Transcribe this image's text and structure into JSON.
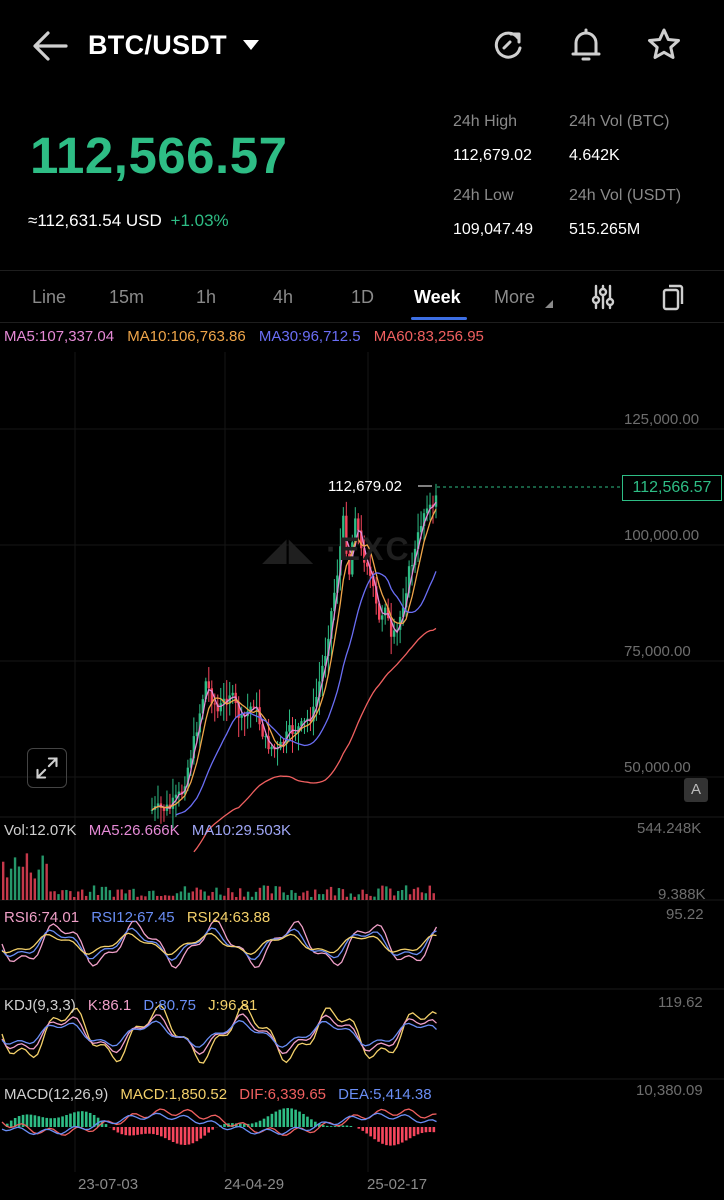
{
  "header": {
    "pair": "BTC/USDT",
    "icons": [
      "back-arrow-icon",
      "refresh-icon",
      "bell-icon",
      "star-icon"
    ]
  },
  "ticker": {
    "last_price": "112,566.57",
    "usd_value": "≈112,631.54 USD",
    "change": "+1.03%",
    "high_label": "24h High",
    "high_value": "112,679.02",
    "low_label": "24h Low",
    "low_value": "109,047.49",
    "vol_btc_label": "24h Vol (BTC)",
    "vol_btc_value": "4.642K",
    "vol_usdt_label": "24h Vol  (USDT)",
    "vol_usdt_value": "515.265M"
  },
  "tabs": {
    "items": [
      "Line",
      "15m",
      "1h",
      "4h",
      "1D",
      "Week",
      "More"
    ],
    "active": "Week"
  },
  "chart": {
    "ma": {
      "ma5": "MA5:107,337.04",
      "ma10": "MA10:106,763.86",
      "ma30": "MA30:96,712.5",
      "ma60": "MA60:83,256.95"
    },
    "price_axis": [
      "125,000.00",
      "100,000.00",
      "75,000.00",
      "50,000.00"
    ],
    "current_price_tag": "112,566.57",
    "high_marker": "112,679.02",
    "a_button": "A",
    "volume": {
      "label": "Vol:12.07K",
      "ma5": "MA5:26.666K",
      "ma10": "MA10:29.503K",
      "max": "544.248K",
      "min": "9.388K"
    },
    "rsi": {
      "rsi6": "RSI6:74.01",
      "rsi12": "RSI12:67.45",
      "rsi24": "RSI24:63.88",
      "max": "95.22"
    },
    "kdj": {
      "label": "KDJ(9,3,3)",
      "k": "K:86.1",
      "d": "D:80.75",
      "j": "J:96.81",
      "max": "119.62"
    },
    "macd": {
      "label": "MACD(12,26,9)",
      "macd": "MACD:1,850.52",
      "dif": "DIF:6,339.65",
      "dea": "DEA:5,414.38",
      "max": "10,380.09"
    },
    "x_labels": [
      "23-07-03",
      "24-04-29",
      "25-02-17"
    ]
  },
  "colors": {
    "up": "#2ebd85",
    "down": "#f6465d",
    "ma5": "#e58ad6",
    "ma10": "#f0a64a",
    "ma30": "#6a6ef5",
    "ma60": "#f06060",
    "accent": "#3d6fe4"
  }
}
